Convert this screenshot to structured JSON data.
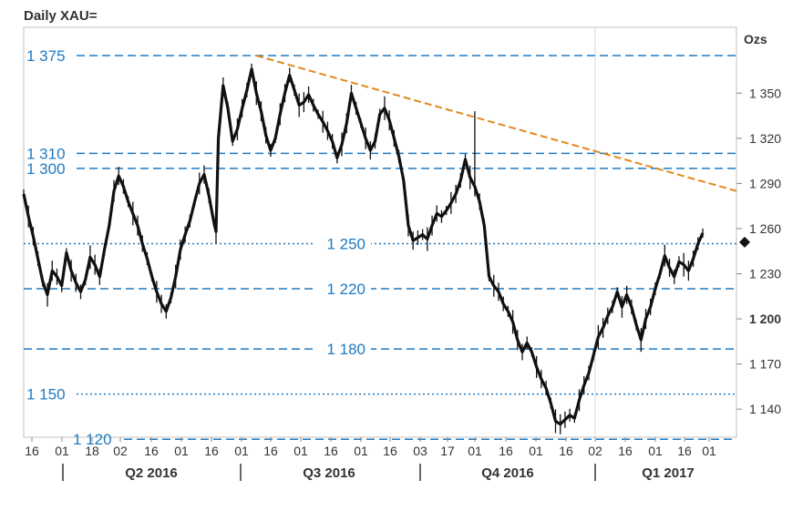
{
  "chart_data": {
    "type": "candlestick",
    "title": "Daily XAU=",
    "unit_label": "Ozs",
    "ylim": [
      1115,
      1385
    ],
    "y_ticks": [
      {
        "value": 1140,
        "label": "1 140",
        "bold": false
      },
      {
        "value": 1170,
        "label": "1 170",
        "bold": false
      },
      {
        "value": 1200,
        "label": "1 200",
        "bold": true
      },
      {
        "value": 1230,
        "label": "1 230",
        "bold": false
      },
      {
        "value": 1260,
        "label": "1 260",
        "bold": false
      },
      {
        "value": 1290,
        "label": "1 290",
        "bold": false
      },
      {
        "value": 1320,
        "label": "1 320",
        "bold": false
      },
      {
        "value": 1350,
        "label": "1 350",
        "bold": false
      }
    ],
    "x_tick_labels": [
      "16",
      "01",
      "18",
      "02",
      "16",
      "01",
      "16",
      "01",
      "16",
      "01",
      "16",
      "01",
      "16",
      "03",
      "17",
      "01",
      "16",
      "01",
      "16",
      "02",
      "16",
      "01",
      "16",
      "01"
    ],
    "quarters": [
      {
        "label": "Q2 2016"
      },
      {
        "label": "Q3 2016"
      },
      {
        "label": "Q4 2016"
      },
      {
        "label": "Q1 2017"
      }
    ],
    "levels": [
      {
        "value": 1375,
        "label": "1 375",
        "style": "dashed",
        "label_pos": "left"
      },
      {
        "value": 1310,
        "label": "1 310",
        "style": "dashed",
        "label_pos": "left"
      },
      {
        "value": 1300,
        "label": "1 300",
        "style": "dashed",
        "label_pos": "left"
      },
      {
        "value": 1250,
        "label": "1 250",
        "style": "dotted",
        "label_pos": "center"
      },
      {
        "value": 1220,
        "label": "1 220",
        "style": "dashed",
        "label_pos": "center"
      },
      {
        "value": 1180,
        "label": "1 180",
        "style": "dashed",
        "label_pos": "center"
      },
      {
        "value": 1150,
        "label": "1 150",
        "style": "dotted",
        "label_pos": "left"
      },
      {
        "value": 1120,
        "label": "1 120",
        "style": "dashed",
        "label_pos": "left"
      }
    ],
    "trendline": {
      "start_value": 1375,
      "end_value": 1285,
      "color": "#e08a1e",
      "style": "dashed"
    },
    "last_price": 1257,
    "series_path": [
      [
        0,
        1283
      ],
      [
        2,
        1268
      ],
      [
        4,
        1255
      ],
      [
        6,
        1240
      ],
      [
        8,
        1225
      ],
      [
        10,
        1216
      ],
      [
        12,
        1232
      ],
      [
        14,
        1228
      ],
      [
        16,
        1222
      ],
      [
        18,
        1244
      ],
      [
        20,
        1232
      ],
      [
        22,
        1224
      ],
      [
        24,
        1218
      ],
      [
        26,
        1226
      ],
      [
        28,
        1241
      ],
      [
        30,
        1236
      ],
      [
        32,
        1228
      ],
      [
        34,
        1246
      ],
      [
        36,
        1262
      ],
      [
        38,
        1285
      ],
      [
        40,
        1295
      ],
      [
        42,
        1288
      ],
      [
        44,
        1278
      ],
      [
        46,
        1270
      ],
      [
        48,
        1262
      ],
      [
        50,
        1250
      ],
      [
        52,
        1240
      ],
      [
        54,
        1228
      ],
      [
        56,
        1218
      ],
      [
        58,
        1210
      ],
      [
        60,
        1205
      ],
      [
        62,
        1214
      ],
      [
        64,
        1228
      ],
      [
        66,
        1246
      ],
      [
        68,
        1256
      ],
      [
        70,
        1265
      ],
      [
        72,
        1278
      ],
      [
        74,
        1290
      ],
      [
        76,
        1296
      ],
      [
        78,
        1282
      ],
      [
        80,
        1265
      ],
      [
        81,
        1258
      ],
      [
        82,
        1320
      ],
      [
        84,
        1355
      ],
      [
        86,
        1340
      ],
      [
        88,
        1318
      ],
      [
        90,
        1326
      ],
      [
        92,
        1340
      ],
      [
        94,
        1352
      ],
      [
        96,
        1366
      ],
      [
        98,
        1350
      ],
      [
        100,
        1338
      ],
      [
        102,
        1322
      ],
      [
        104,
        1312
      ],
      [
        106,
        1320
      ],
      [
        108,
        1336
      ],
      [
        110,
        1350
      ],
      [
        112,
        1362
      ],
      [
        114,
        1352
      ],
      [
        116,
        1342
      ],
      [
        118,
        1344
      ],
      [
        120,
        1349
      ],
      [
        122,
        1342
      ],
      [
        124,
        1336
      ],
      [
        126,
        1331
      ],
      [
        128,
        1325
      ],
      [
        130,
        1318
      ],
      [
        132,
        1307
      ],
      [
        134,
        1316
      ],
      [
        136,
        1330
      ],
      [
        138,
        1350
      ],
      [
        140,
        1340
      ],
      [
        142,
        1330
      ],
      [
        144,
        1320
      ],
      [
        146,
        1312
      ],
      [
        148,
        1318
      ],
      [
        150,
        1336
      ],
      [
        152,
        1340
      ],
      [
        154,
        1332
      ],
      [
        156,
        1320
      ],
      [
        158,
        1308
      ],
      [
        160,
        1292
      ],
      [
        162,
        1262
      ],
      [
        164,
        1252
      ],
      [
        166,
        1254
      ],
      [
        168,
        1256
      ],
      [
        170,
        1253
      ],
      [
        172,
        1262
      ],
      [
        174,
        1270
      ],
      [
        176,
        1268
      ],
      [
        178,
        1272
      ],
      [
        180,
        1277
      ],
      [
        182,
        1283
      ],
      [
        184,
        1292
      ],
      [
        186,
        1306
      ],
      [
        188,
        1294
      ],
      [
        190,
        1288
      ],
      [
        192,
        1278
      ],
      [
        194,
        1262
      ],
      [
        196,
        1228
      ],
      [
        198,
        1222
      ],
      [
        200,
        1218
      ],
      [
        202,
        1210
      ],
      [
        204,
        1205
      ],
      [
        206,
        1198
      ],
      [
        208,
        1186
      ],
      [
        210,
        1178
      ],
      [
        212,
        1184
      ],
      [
        214,
        1178
      ],
      [
        216,
        1168
      ],
      [
        218,
        1160
      ],
      [
        220,
        1154
      ],
      [
        222,
        1144
      ],
      [
        224,
        1132
      ],
      [
        226,
        1130
      ],
      [
        228,
        1133
      ],
      [
        230,
        1136
      ],
      [
        232,
        1134
      ],
      [
        234,
        1146
      ],
      [
        236,
        1156
      ],
      [
        238,
        1164
      ],
      [
        240,
        1176
      ],
      [
        242,
        1188
      ],
      [
        244,
        1194
      ],
      [
        246,
        1202
      ],
      [
        248,
        1208
      ],
      [
        250,
        1218
      ],
      [
        252,
        1208
      ],
      [
        254,
        1216
      ],
      [
        256,
        1208
      ],
      [
        258,
        1196
      ],
      [
        260,
        1186
      ],
      [
        262,
        1200
      ],
      [
        264,
        1208
      ],
      [
        266,
        1220
      ],
      [
        268,
        1230
      ],
      [
        270,
        1242
      ],
      [
        272,
        1234
      ],
      [
        274,
        1228
      ],
      [
        276,
        1238
      ],
      [
        278,
        1236
      ],
      [
        280,
        1232
      ],
      [
        282,
        1240
      ],
      [
        284,
        1250
      ],
      [
        286,
        1257
      ]
    ]
  }
}
